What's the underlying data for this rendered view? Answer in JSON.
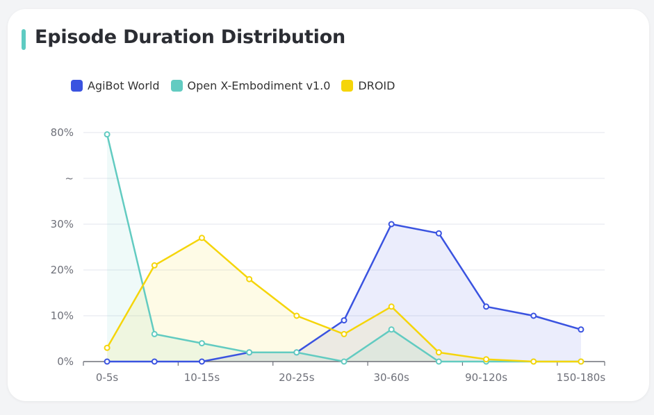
{
  "title": "Episode Duration Distribution",
  "colors": {
    "accent": "#5ecbc2"
  },
  "chart_data": {
    "type": "line",
    "title": "Episode Duration Distribution",
    "x_labels": [
      "0-5s",
      "",
      "10-15s",
      "",
      "20-25s",
      "",
      "30-60s",
      "",
      "90-120s",
      "",
      "150-180s"
    ],
    "y_tick_labels": [
      "0%",
      "10%",
      "20%",
      "30%",
      "~",
      "80%"
    ],
    "y_axis": "broken: 0–30% linear, break (~), up to 80%",
    "ylim": [
      0,
      80
    ],
    "grid": true,
    "area_fill": true,
    "legend_position": "top",
    "series": [
      {
        "name": "AgiBot World",
        "color": "#3a53e0",
        "values": [
          0,
          0,
          0,
          2,
          2,
          9,
          30,
          28,
          12,
          10,
          7
        ]
      },
      {
        "name": "Open X-Embodiment v1.0",
        "color": "#62cbc1",
        "values": [
          79,
          6,
          4,
          2,
          2,
          0,
          7,
          0,
          0,
          0,
          0
        ]
      },
      {
        "name": "DROID",
        "color": "#f5d50a",
        "values": [
          3,
          21,
          27,
          18,
          10,
          6,
          12,
          2,
          0.5,
          0,
          0
        ]
      }
    ]
  }
}
